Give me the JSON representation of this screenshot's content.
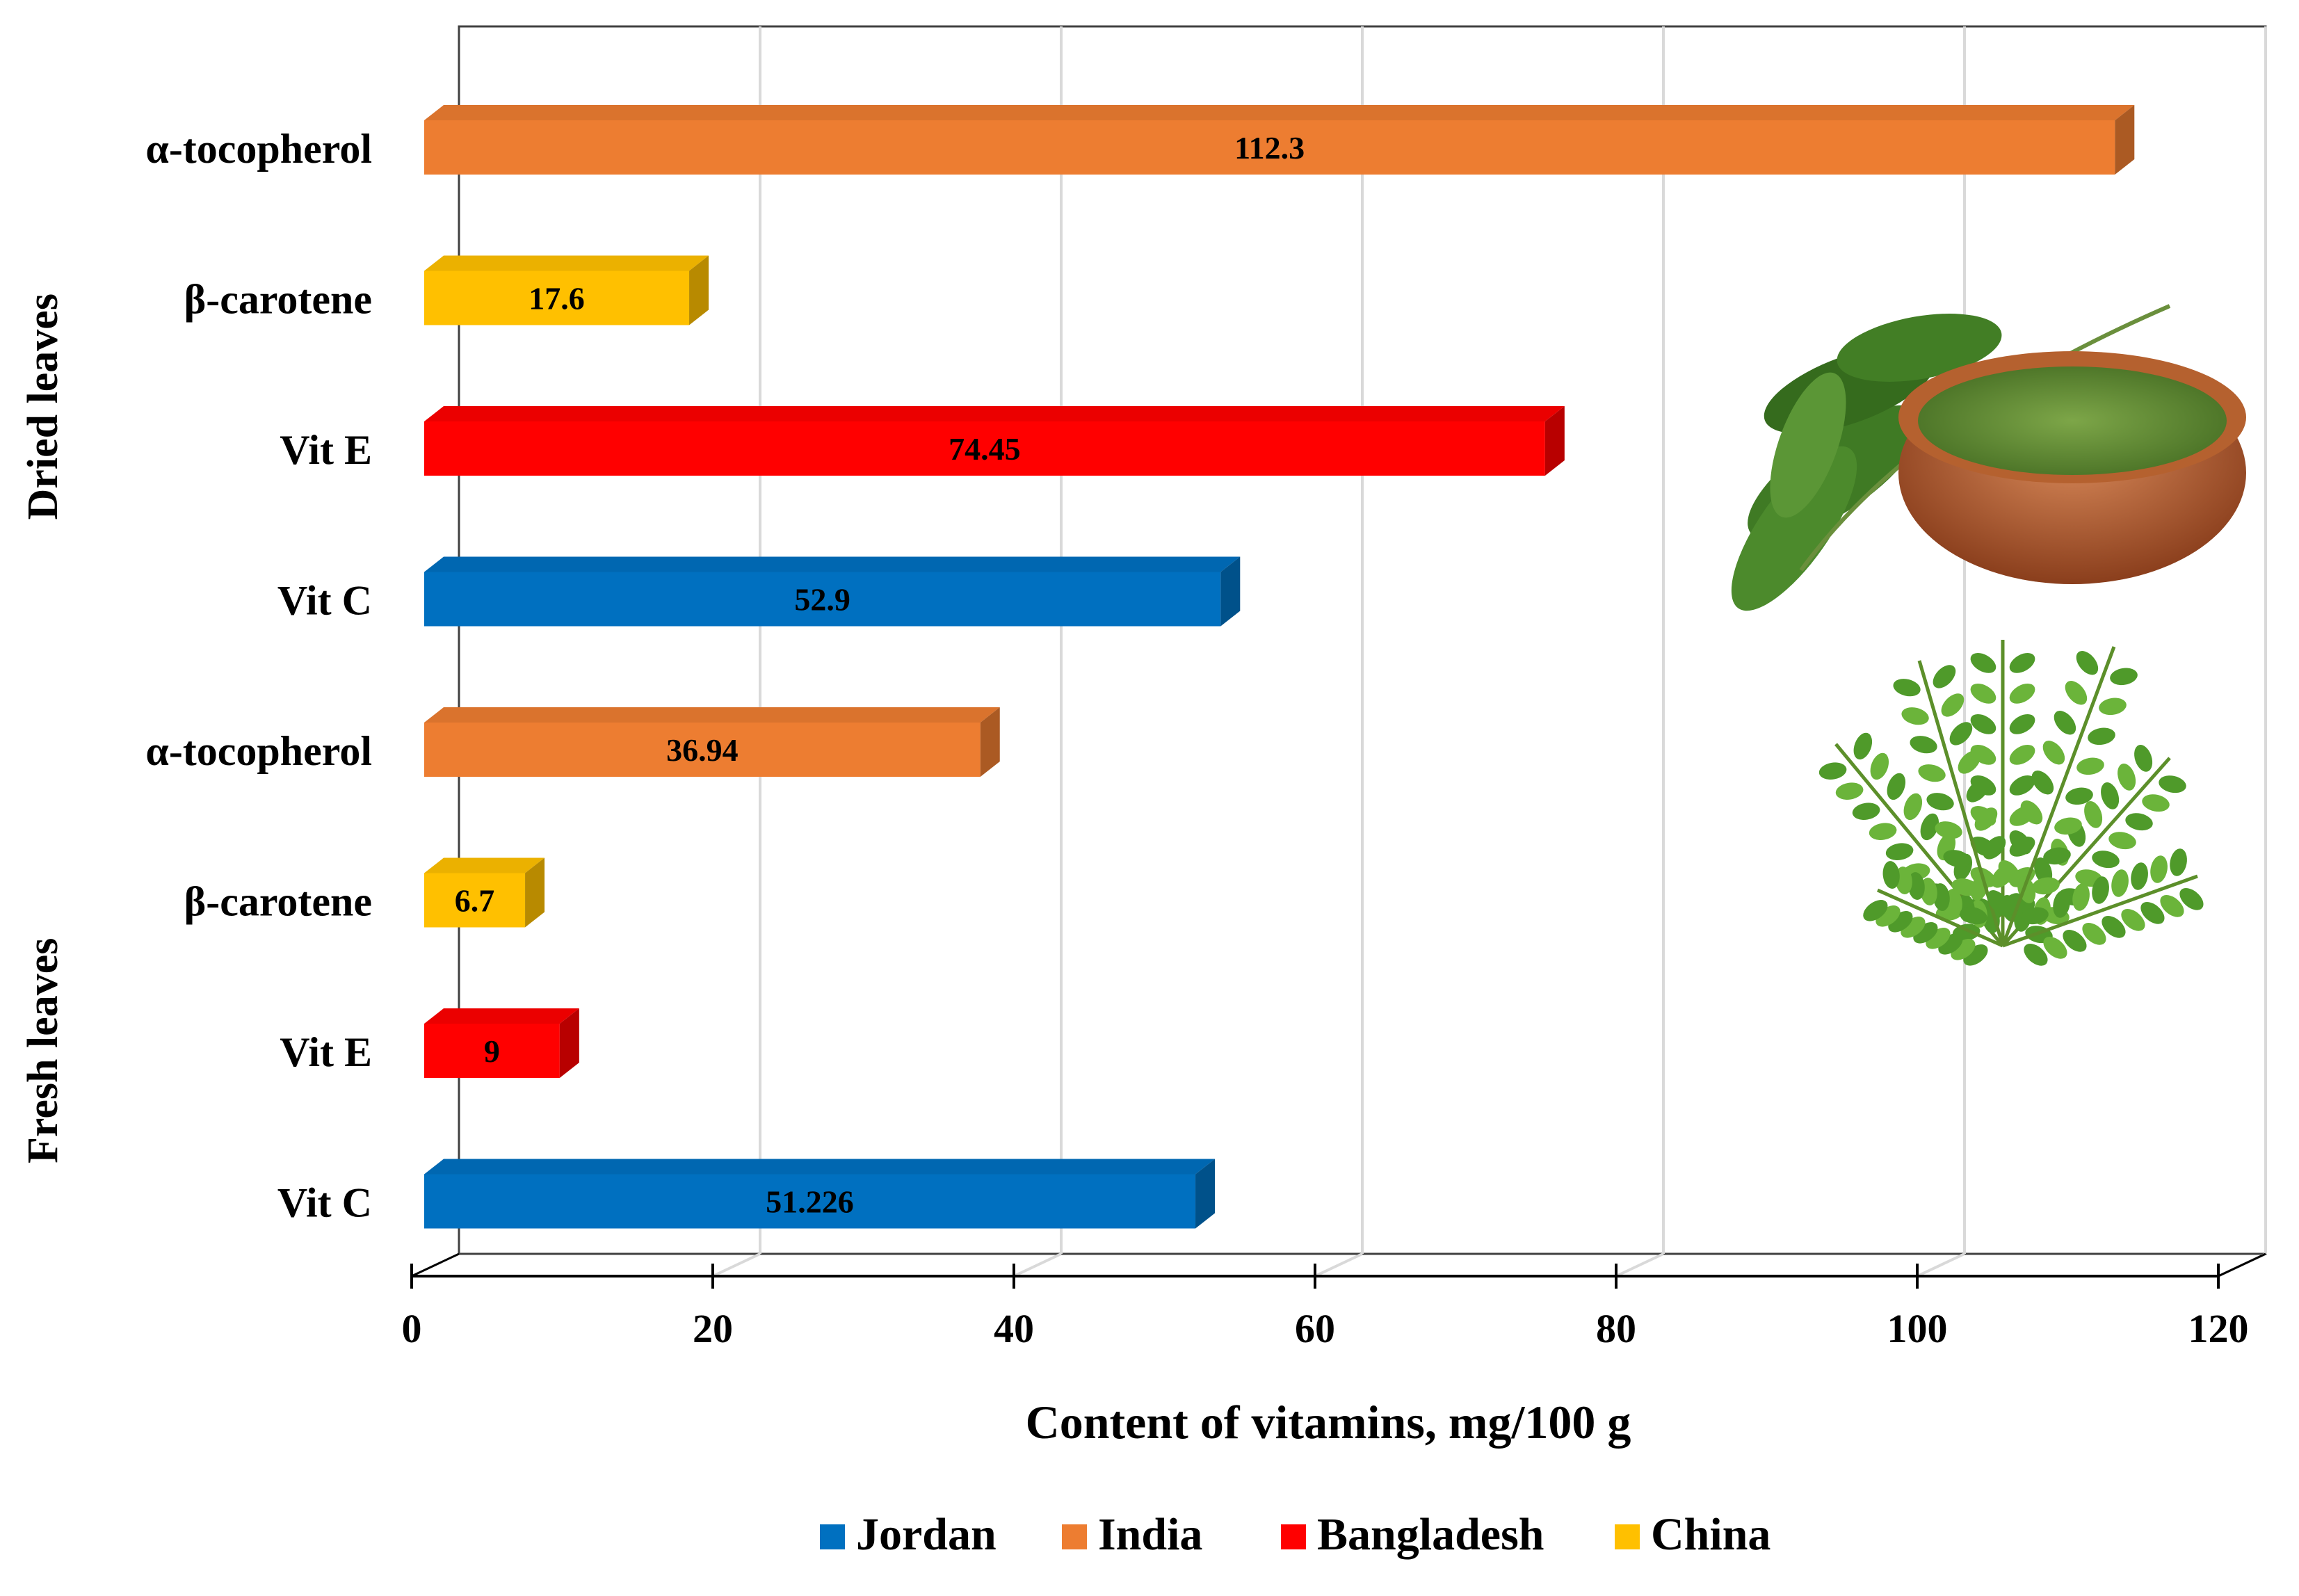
{
  "chart_data": {
    "type": "bar",
    "orientation": "horizontal",
    "style": "3d",
    "xlabel": "Content of vitamins,  mg/100  g",
    "xlim": [
      0,
      120
    ],
    "xticks": [
      0,
      20,
      40,
      60,
      80,
      100,
      120
    ],
    "grid": true,
    "legend_position": "bottom",
    "groups": [
      {
        "label": "Dried leaves",
        "bars": [
          {
            "category": "α-tocopherol",
            "value": 112.3,
            "label": "112.3",
            "series": "India"
          },
          {
            "category": "β-carotene",
            "value": 17.6,
            "label": "17.6",
            "series": "China"
          },
          {
            "category": "Vit E",
            "value": 74.45,
            "label": "74.45",
            "series": "Bangladesh"
          },
          {
            "category": "Vit C",
            "value": 52.9,
            "label": "52.9",
            "series": "Jordan"
          }
        ]
      },
      {
        "label": "Fresh leaves",
        "bars": [
          {
            "category": "α-tocopherol",
            "value": 36.94,
            "label": "36.94",
            "series": "India"
          },
          {
            "category": "β-carotene",
            "value": 6.7,
            "label": "6.7",
            "series": "China"
          },
          {
            "category": "Vit E",
            "value": 9,
            "label": "9",
            "series": "Bangladesh"
          },
          {
            "category": "Vit C",
            "value": 51.226,
            "label": "51.226",
            "series": "Jordan"
          }
        ]
      }
    ],
    "legend": [
      {
        "name": "Jordan",
        "color": "#0070C0"
      },
      {
        "name": "India",
        "color": "#ED7D31"
      },
      {
        "name": "Bangladesh",
        "color": "#FF0000"
      },
      {
        "name": "China",
        "color": "#FFC000"
      }
    ]
  }
}
